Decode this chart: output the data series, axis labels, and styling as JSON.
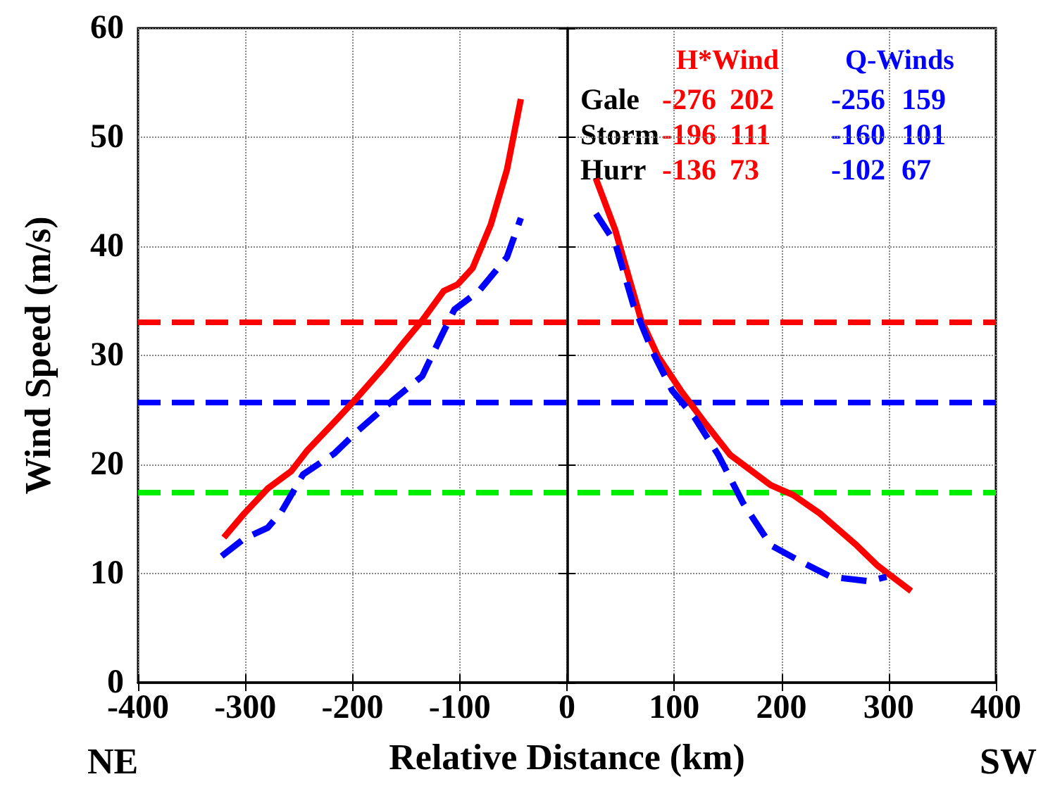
{
  "chart_data": {
    "type": "line",
    "xlabel": "Relative Distance (km)",
    "ylabel": "Wind Speed (m/s)",
    "xlim": [
      -400,
      400
    ],
    "xticks": [
      -400,
      -300,
      -200,
      -100,
      0,
      100,
      200,
      300,
      400
    ],
    "ylim": [
      0,
      60
    ],
    "yticks": [
      0,
      10,
      20,
      30,
      40,
      50,
      60
    ],
    "grid": true,
    "legend": "top right",
    "marker": "none",
    "series": [
      {
        "name": "H*Wind",
        "color": "#ff0000",
        "line_style": "solid",
        "x": [
          -320,
          -301,
          -279,
          -257,
          -242,
          -213,
          -196,
          -170,
          -152,
          -135,
          -115,
          -102,
          -88,
          -71,
          -56,
          -43,
          0,
          27,
          45,
          69,
          85,
          106,
          128,
          152,
          190,
          211,
          236,
          256,
          270,
          290,
          321
        ],
        "values": [
          13.3,
          15.5,
          17.8,
          19.4,
          21.3,
          24.3,
          26.1,
          29,
          31.2,
          33.2,
          35.9,
          36.5,
          38,
          42,
          47,
          53.5,
          null,
          46.2,
          41.5,
          33.3,
          29.9,
          26.8,
          23.9,
          20.9,
          18.1,
          17.2,
          15.5,
          13.8,
          12.6,
          10.7,
          8.4
        ]
      },
      {
        "name": "Q-Winds",
        "color": "#0000ff",
        "line_style": "dashed",
        "x": [
          -322,
          -301,
          -279,
          -266,
          -246,
          -217,
          -196,
          -161,
          -135,
          -118,
          -105,
          -82,
          -56,
          -43,
          0,
          27,
          45,
          62,
          80,
          98,
          119,
          141,
          164,
          190,
          216,
          246,
          281,
          298
        ],
        "values": [
          11.6,
          13.2,
          14.2,
          15.7,
          19.1,
          21,
          23,
          26,
          28.1,
          31.6,
          34.2,
          35.9,
          39,
          42.6,
          null,
          43,
          40.3,
          34.6,
          30.3,
          26.8,
          24.3,
          20.9,
          16.5,
          12.6,
          11.2,
          9.7,
          9.3,
          9.7
        ]
      }
    ],
    "ref_lines": [
      {
        "axis": "y",
        "value": 33,
        "color": "#ff0000",
        "line_style": "dashed"
      },
      {
        "axis": "y",
        "value": 25.7,
        "color": "#0000ff",
        "line_style": "dashed"
      },
      {
        "axis": "y",
        "value": 17.5,
        "color": "#00ee00",
        "line_style": "dashed"
      }
    ],
    "annotations": [
      "Gale",
      "-276",
      "202",
      "-256",
      "159",
      "Storm",
      "-196",
      "111",
      "-160",
      "101",
      "Hurr",
      "-136",
      "73",
      "-102",
      "67",
      "NE",
      "SW"
    ]
  }
}
